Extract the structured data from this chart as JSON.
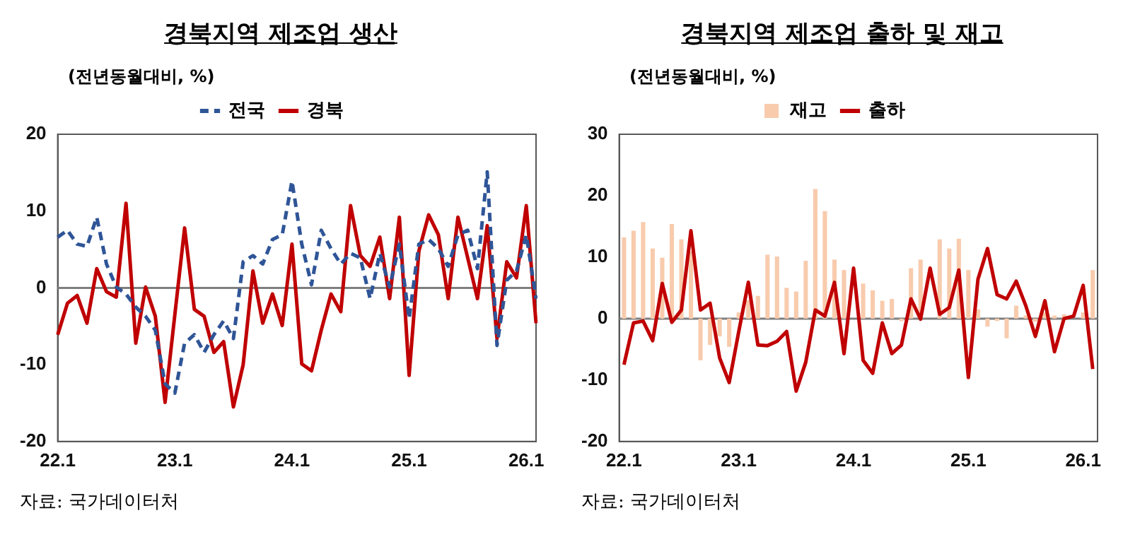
{
  "chart_data": [
    {
      "type": "line",
      "title": "경북지역 제조업 생산",
      "ylabel": "(전년동월대비, %)",
      "annotations": [
        "자료: 국가데이터처"
      ],
      "categories": [
        "22.1",
        null,
        null,
        null,
        null,
        null,
        null,
        null,
        null,
        null,
        null,
        null,
        "23.1",
        null,
        null,
        null,
        null,
        null,
        null,
        null,
        null,
        null,
        null,
        null,
        "24.1",
        null,
        null,
        null,
        null,
        null,
        null,
        null,
        null,
        null,
        null,
        null,
        "25.1",
        null,
        null,
        null,
        null,
        null,
        null,
        null,
        null,
        null,
        null,
        null,
        "26.1",
        null
      ],
      "series": [
        {
          "name": "전국",
          "color": "#2f5597",
          "line_style": "dashed",
          "values": [
            6.6,
            7.5,
            5.7,
            5.4,
            9.2,
            3.1,
            0.1,
            -0.8,
            -2.5,
            -3.7,
            -5.5,
            -12.5,
            -13.7,
            -7.2,
            -6.1,
            -8.4,
            -6.1,
            -4.3,
            -6.6,
            3.4,
            4.2,
            3.1,
            6.3,
            6.9,
            13.9,
            5.7,
            0.4,
            7.5,
            5.1,
            3.1,
            4.5,
            3.9,
            -1.4,
            4.5,
            0.1,
            5.7,
            -4,
            5.7,
            6.3,
            5.1,
            2.8,
            6.9,
            7.5,
            2.5,
            15.1,
            -7.5,
            1,
            2.2,
            6.9,
            -1.4
          ]
        },
        {
          "name": "경북",
          "color": "#c00000",
          "line_style": "solid",
          "values": [
            -6.1,
            -2,
            -1,
            -4.6,
            2.5,
            -0.5,
            -1.2,
            11,
            -7.2,
            0.1,
            -3.7,
            -14.9,
            -3.5,
            7.8,
            -2.8,
            -3.7,
            -8.4,
            -7,
            -15.5,
            -10,
            2.2,
            -4.6,
            -0.8,
            -4.9,
            5.7,
            -9.9,
            -10.8,
            -5.5,
            -0.8,
            -3.1,
            10.7,
            4.2,
            2.8,
            6.6,
            -1.4,
            9.2,
            -11.4,
            4.8,
            9.5,
            6.9,
            -1.4,
            9.2,
            3.9,
            -1.4,
            8.1,
            -6.6,
            3.4,
            1.3,
            10.7,
            -4.6
          ]
        }
      ],
      "ylim": [
        -20,
        20
      ],
      "yticks": [
        -20,
        -10,
        0,
        10,
        20
      ],
      "grid": false,
      "legend": "top",
      "marker": "none",
      "ref_lines": [
        {
          "axis": "y",
          "value": 0,
          "color": "#7f7f7f"
        }
      ]
    },
    {
      "type": "bar",
      "title": "경북지역 제조업 출하 및 재고",
      "ylabel": "(전년동월대비, %)",
      "annotations": [
        "자료: 국가데이터처"
      ],
      "categories": [
        "22.1",
        null,
        null,
        null,
        null,
        null,
        null,
        null,
        null,
        null,
        null,
        null,
        "23.1",
        null,
        null,
        null,
        null,
        null,
        null,
        null,
        null,
        null,
        null,
        null,
        "24.1",
        null,
        null,
        null,
        null,
        null,
        null,
        null,
        null,
        null,
        null,
        null,
        "25.1",
        null,
        null,
        null,
        null,
        null,
        null,
        null,
        null,
        null,
        null,
        null,
        "26.1",
        null
      ],
      "series": [
        {
          "name": "재고",
          "type": "bar",
          "color": "#f8cbad",
          "values": [
            13.2,
            14.3,
            15.7,
            11.4,
            9.9,
            15.4,
            12.9,
            11,
            -6.8,
            -4.3,
            -2.9,
            -4.6,
            1,
            3,
            3.7,
            10.4,
            10.1,
            5,
            4.4,
            9.4,
            21.1,
            17.5,
            9.6,
            7.9,
            null,
            5.7,
            4.6,
            2.9,
            3.2,
            -0.4,
            8.2,
            9.6,
            null,
            12.9,
            11.4,
            13,
            7.9,
            1.5,
            -1.3,
            -0.4,
            -3.2,
            2.1,
            0.5,
            -0.5,
            1,
            0.5,
            0.7,
            null,
            1,
            7.9
          ]
        },
        {
          "name": "출하",
          "type": "line",
          "color": "#c00000",
          "line_style": "solid",
          "values": [
            -7.5,
            -0.7,
            -0.4,
            -3.6,
            5.7,
            -0.6,
            1.4,
            14.3,
            1.4,
            2.5,
            -6.4,
            -10.4,
            -2.1,
            5.9,
            -4.3,
            -4.4,
            -3.7,
            -2.1,
            -11.8,
            -7.1,
            1.4,
            0.4,
            5.9,
            -5.7,
            8.2,
            -6.8,
            -8.9,
            -0.7,
            -5.7,
            -4.3,
            3.2,
            -0.1,
            8.2,
            0.7,
            1.8,
            7.9,
            -9.6,
            6.4,
            11.4,
            3.9,
            3.2,
            6.1,
            2.1,
            -2.9,
            2.9,
            -5.4,
            0,
            0.4,
            5.4,
            -8.2
          ]
        }
      ],
      "ylim": [
        -20,
        30
      ],
      "yticks": [
        -20,
        -10,
        0,
        10,
        20,
        30
      ],
      "grid": false,
      "legend": "top",
      "marker": "none",
      "ref_lines": [
        {
          "axis": "y",
          "value": 0,
          "color": "#7f7f7f"
        }
      ]
    }
  ]
}
